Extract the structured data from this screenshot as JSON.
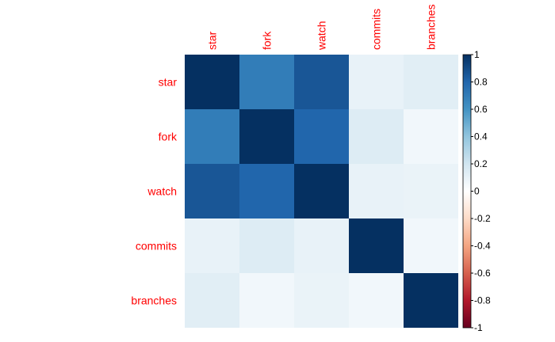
{
  "chart_data": {
    "type": "heatmap",
    "title": "",
    "rows": [
      "star",
      "fork",
      "watch",
      "commits",
      "branches"
    ],
    "columns": [
      "star",
      "fork",
      "watch",
      "commits",
      "branches"
    ],
    "values": [
      [
        1.0,
        0.7,
        0.86,
        0.1,
        0.13
      ],
      [
        0.7,
        1.0,
        0.8,
        0.15,
        0.06
      ],
      [
        0.86,
        0.8,
        1.0,
        0.1,
        0.09
      ],
      [
        0.1,
        0.15,
        0.1,
        1.0,
        0.06
      ],
      [
        0.13,
        0.06,
        0.09,
        0.06,
        1.0
      ]
    ],
    "colorbar": {
      "min": -1,
      "max": 1,
      "ticks": [
        "1",
        "0.8",
        "0.6",
        "0.4",
        "0.2",
        "0",
        "-0.2",
        "-0.4",
        "-0.6",
        "-0.8",
        "-1"
      ]
    },
    "label_color": "#ff0000",
    "colormap": [
      "#67001f",
      "#b2182b",
      "#d6604d",
      "#f4a582",
      "#fddbc7",
      "#ffffff",
      "#d1e5f0",
      "#92c5de",
      "#4393c3",
      "#2166ac",
      "#053061"
    ]
  }
}
